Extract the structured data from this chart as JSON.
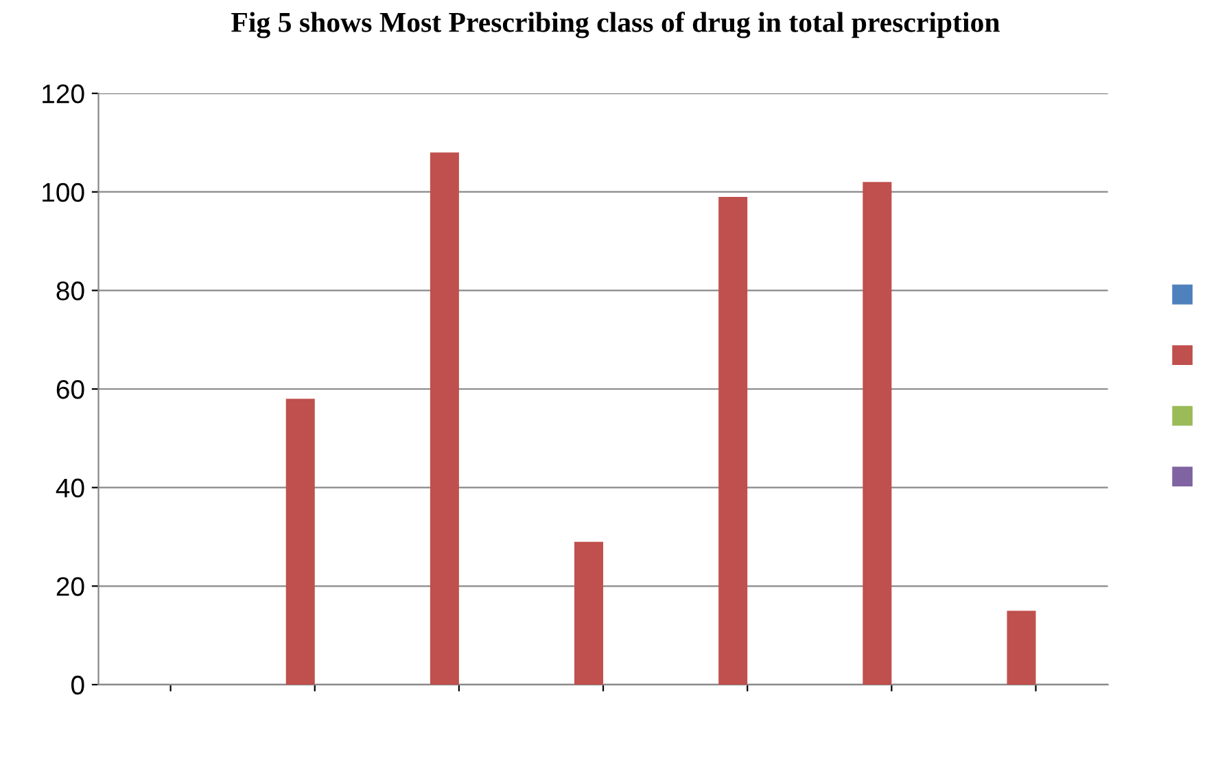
{
  "chart_data": {
    "type": "bar",
    "title": "Fig 5 shows Most Prescribing class of drug in total prescription",
    "categories": [
      null,
      null,
      null,
      null,
      null,
      null,
      null
    ],
    "series": [
      {
        "color": "#4f81bd",
        "values": [
          0,
          0,
          0,
          0,
          0,
          0,
          0
        ]
      },
      {
        "color": "#c0504d",
        "values": [
          0,
          58,
          108,
          29,
          99,
          102,
          15
        ]
      },
      {
        "color": "#9bbb59",
        "values": [
          0,
          0,
          0,
          0,
          0,
          0,
          0
        ]
      },
      {
        "color": "#8064a2",
        "values": [
          0,
          0,
          0,
          0,
          0,
          0,
          0
        ]
      }
    ],
    "ylim": [
      0,
      120
    ],
    "yticks": [
      0,
      20,
      40,
      60,
      80,
      100,
      120
    ],
    "grid": "y"
  }
}
